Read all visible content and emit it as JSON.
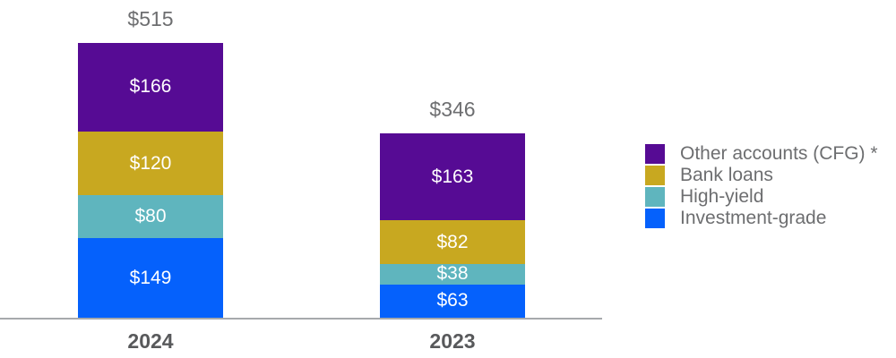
{
  "chart_data": {
    "type": "bar",
    "stacked": true,
    "title": "",
    "categories": [
      "2024",
      "2023"
    ],
    "series": [
      {
        "name": "Other accounts (CFG) *",
        "color": "#560B94",
        "values": [
          166,
          163
        ],
        "value_labels": [
          "$166",
          "$163"
        ]
      },
      {
        "name": "Bank loans",
        "color": "#C8A820",
        "values": [
          120,
          82
        ],
        "value_labels": [
          "$120",
          "$82"
        ]
      },
      {
        "name": "High-yield",
        "color": "#5FB5BE",
        "values": [
          80,
          38
        ],
        "value_labels": [
          "$80",
          "$38"
        ]
      },
      {
        "name": "Investment-grade",
        "color": "#0561FC",
        "values": [
          149,
          63
        ],
        "value_labels": [
          "$149",
          "$63"
        ]
      }
    ],
    "totals": [
      515,
      346
    ],
    "total_labels": [
      "$515",
      "$346"
    ],
    "value_prefix": "$",
    "stack_order_top_to_bottom": [
      "Other accounts (CFG) *",
      "Bank loans",
      "High-yield",
      "Investment-grade"
    ],
    "legend_position": "right",
    "grid": false,
    "axis": {
      "baseline_visible": true,
      "baseline_color": "#A7A9AC",
      "y_axis_visible": false
    },
    "colors": {
      "total_label_text": "#6D6E70",
      "category_label_text": "#58595B",
      "segment_label_text": "#FFFFFF",
      "legend_text": "#6D6E70",
      "background": "#FFFFFF"
    }
  }
}
